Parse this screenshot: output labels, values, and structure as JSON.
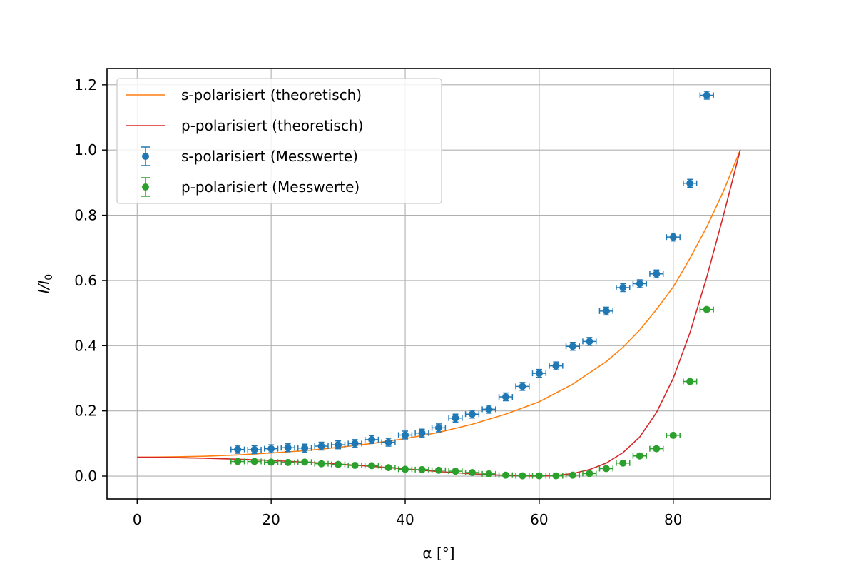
{
  "chart_data": {
    "type": "scatter",
    "xlabel": "α [°]",
    "ylabel": "I/I₀",
    "xlim": [
      -4.5,
      94.5
    ],
    "ylim": [
      -0.07,
      1.25
    ],
    "x_ticks": [
      0,
      20,
      40,
      60,
      80
    ],
    "y_ticks": [
      0.0,
      0.2,
      0.4,
      0.6,
      0.8,
      1.0,
      1.2
    ],
    "x_tick_labels": [
      "0",
      "20",
      "40",
      "60",
      "80"
    ],
    "y_tick_labels": [
      "0.0",
      "0.2",
      "0.4",
      "0.6",
      "0.8",
      "1.0",
      "1.2"
    ],
    "grid": true,
    "legend_position": "top-left",
    "series": [
      {
        "name": "s-polarisiert (theoretisch)",
        "kind": "line",
        "color": "#ff7f0e",
        "x": [
          0,
          5,
          10,
          15,
          20,
          25,
          30,
          35,
          40,
          45,
          50,
          55,
          60,
          65,
          70,
          72.5,
          75,
          77.5,
          80,
          82.5,
          85,
          87.5,
          90
        ],
        "y": [
          0.058,
          0.059,
          0.061,
          0.065,
          0.071,
          0.078,
          0.088,
          0.1,
          0.115,
          0.134,
          0.159,
          0.19,
          0.228,
          0.282,
          0.351,
          0.395,
          0.448,
          0.511,
          0.58,
          0.668,
          0.764,
          0.874,
          1.0
        ]
      },
      {
        "name": "p-polarisiert (theoretisch)",
        "kind": "line",
        "color": "#d62728",
        "x": [
          0,
          5,
          10,
          15,
          20,
          25,
          30,
          35,
          40,
          45,
          50,
          55,
          57.5,
          60,
          62.5,
          65,
          67.5,
          70,
          72.5,
          75,
          77.5,
          80,
          82.5,
          85,
          87.5,
          90
        ],
        "y": [
          0.058,
          0.057,
          0.055,
          0.052,
          0.048,
          0.043,
          0.037,
          0.03,
          0.022,
          0.014,
          0.007,
          0.002,
          0.001,
          0.0,
          0.002,
          0.008,
          0.02,
          0.04,
          0.072,
          0.12,
          0.195,
          0.3,
          0.44,
          0.61,
          0.8,
          1.0
        ]
      },
      {
        "name": "s-polarisiert (Messwerte)",
        "kind": "errorbar",
        "color": "#1f77b4",
        "x_err": 1.0,
        "y_err": 0.012,
        "x": [
          15,
          17.5,
          20,
          22.5,
          25,
          27.5,
          30,
          32.5,
          35,
          37.5,
          40,
          42.5,
          45,
          47.5,
          50,
          52.5,
          55,
          57.5,
          60,
          62.5,
          65,
          67.5,
          70,
          72.5,
          75,
          77.5,
          80,
          82.5,
          85
        ],
        "y": [
          0.082,
          0.081,
          0.084,
          0.087,
          0.086,
          0.092,
          0.096,
          0.1,
          0.112,
          0.104,
          0.126,
          0.132,
          0.148,
          0.178,
          0.19,
          0.205,
          0.243,
          0.275,
          0.315,
          0.338,
          0.398,
          0.413,
          0.506,
          0.578,
          0.59,
          0.62,
          0.733,
          0.898,
          1.168
        ]
      },
      {
        "name": "p-polarisiert (Messwerte)",
        "kind": "errorbar",
        "color": "#2ca02c",
        "x_err": 1.0,
        "y_err": 0.006,
        "x": [
          15,
          17.5,
          20,
          22.5,
          25,
          27.5,
          30,
          32.5,
          35,
          37.5,
          40,
          42.5,
          45,
          47.5,
          50,
          52.5,
          55,
          57.5,
          60,
          62.5,
          65,
          67.5,
          70,
          72.5,
          75,
          77.5,
          80,
          82.5,
          85
        ],
        "y": [
          0.045,
          0.045,
          0.043,
          0.042,
          0.043,
          0.038,
          0.036,
          0.033,
          0.032,
          0.026,
          0.021,
          0.02,
          0.018,
          0.015,
          0.011,
          0.007,
          0.003,
          0.001,
          0.001,
          0.001,
          0.003,
          0.008,
          0.023,
          0.04,
          0.062,
          0.084,
          0.125,
          0.29,
          0.511
        ]
      }
    ]
  }
}
